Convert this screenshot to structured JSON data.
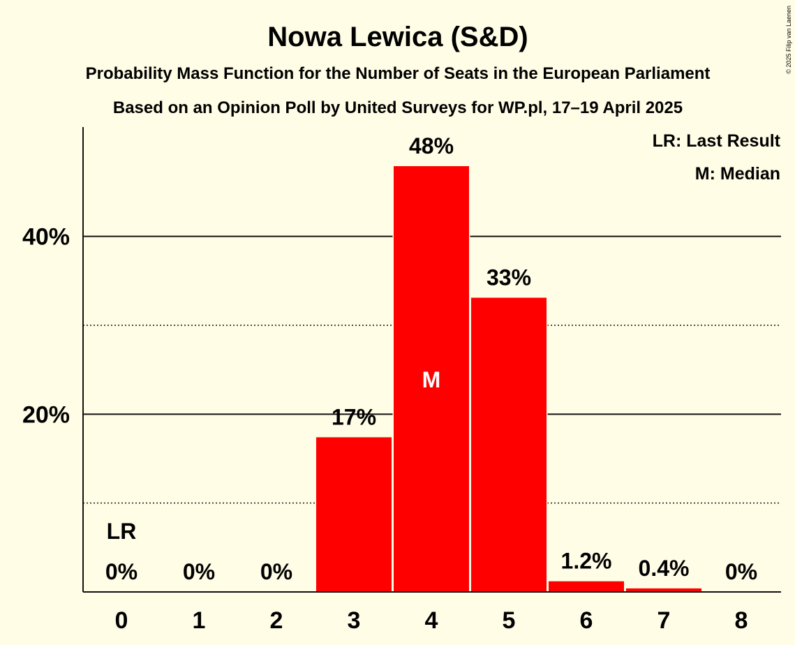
{
  "chart_data": {
    "type": "bar",
    "title": "Nowa Lewica (S&D)",
    "subtitle": "Probability Mass Function for the Number of Seats in the European Parliament",
    "subtitle2": "Based on an Opinion Poll by United Surveys for WP.pl, 17–19 April 2025",
    "copyright": "© 2025 Filip van Laenen",
    "categories": [
      "0",
      "1",
      "2",
      "3",
      "4",
      "5",
      "6",
      "7",
      "8"
    ],
    "values": [
      0,
      0,
      0,
      17.4,
      47.9,
      33.1,
      1.2,
      0.4,
      0
    ],
    "value_labels": [
      "0%",
      "0%",
      "0%",
      "17%",
      "48%",
      "33%",
      "1.2%",
      "0.4%",
      "0%"
    ],
    "y_ticks": [
      {
        "value": 20,
        "label": "20%"
      },
      {
        "value": 40,
        "label": "40%"
      }
    ],
    "minor_gridlines": [
      10,
      30
    ],
    "ylim": [
      0,
      52.3
    ],
    "last_result_index": 0,
    "last_result_marker": "LR",
    "median_index": 4,
    "median_marker": "M",
    "legend": [
      "LR: Last Result",
      "M: Median"
    ],
    "legend_position": "top-right",
    "colors": {
      "bar": "#ff0000",
      "background": "#fffde6",
      "text": "#111111",
      "median_text": "#ffffff"
    }
  }
}
